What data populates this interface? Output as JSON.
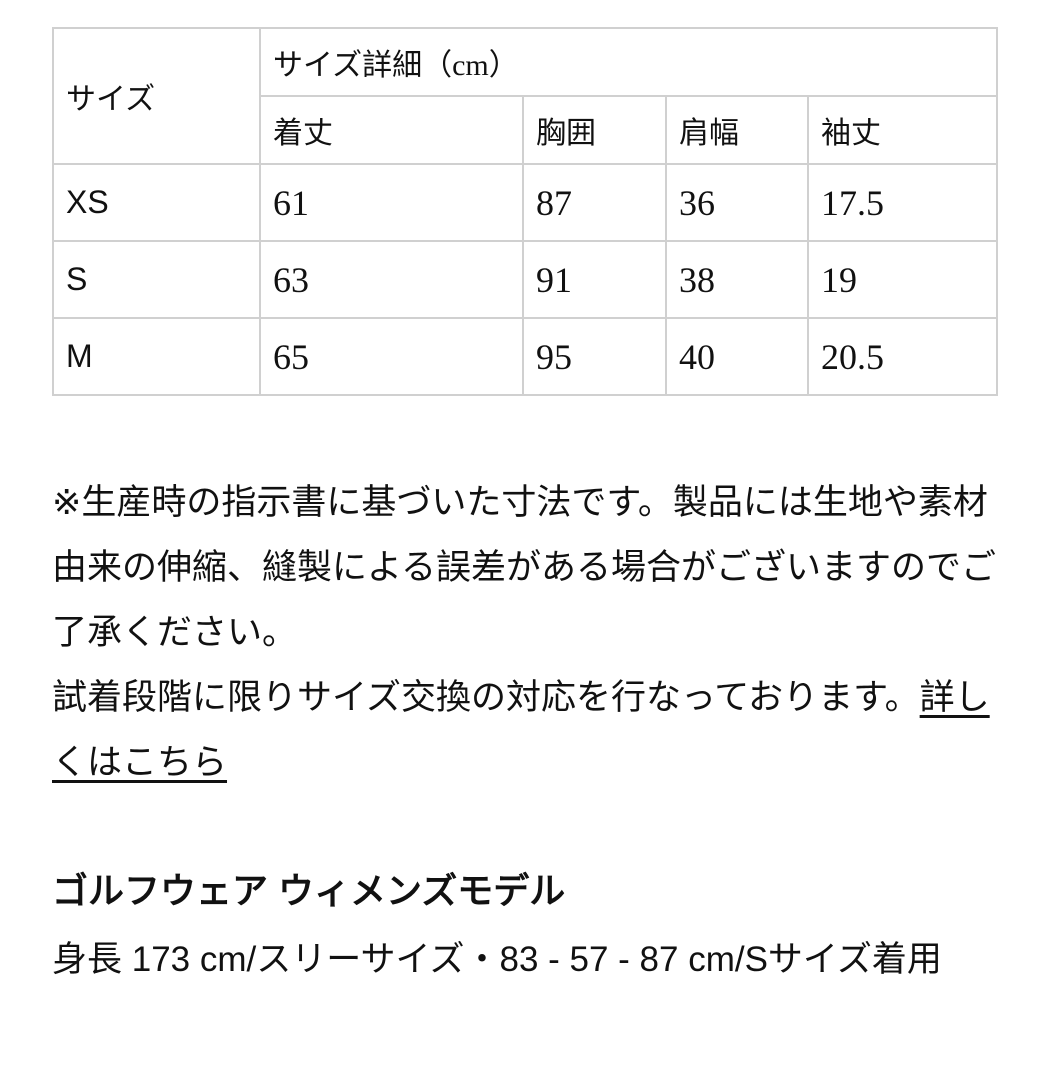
{
  "table": {
    "size_header": "サイズ",
    "detail_header": "サイズ詳細（cm）",
    "columns": [
      "着丈",
      "胸囲",
      "肩幅",
      "袖丈"
    ],
    "rows": [
      {
        "size": "XS",
        "values": [
          "61",
          "87",
          "36",
          "17.5"
        ]
      },
      {
        "size": "S",
        "values": [
          "63",
          "91",
          "38",
          "19"
        ]
      },
      {
        "size": "M",
        "values": [
          "65",
          "95",
          "40",
          "20.5"
        ]
      }
    ]
  },
  "note": {
    "text1": "※生産時の指示書に基づいた寸法です。製品には生地や素材由来の伸縮、縫製による誤差がある場合がございますのでご了承ください。",
    "text2": "試着段階に限りサイズ交換の対応を行なっております。",
    "link": "詳しくはこちら"
  },
  "model": {
    "title": "ゴルフウェア ウィメンズモデル",
    "description": "身長 173 cm/スリーサイズ・83 - 57 - 87 cm/Sサイズ着用"
  }
}
